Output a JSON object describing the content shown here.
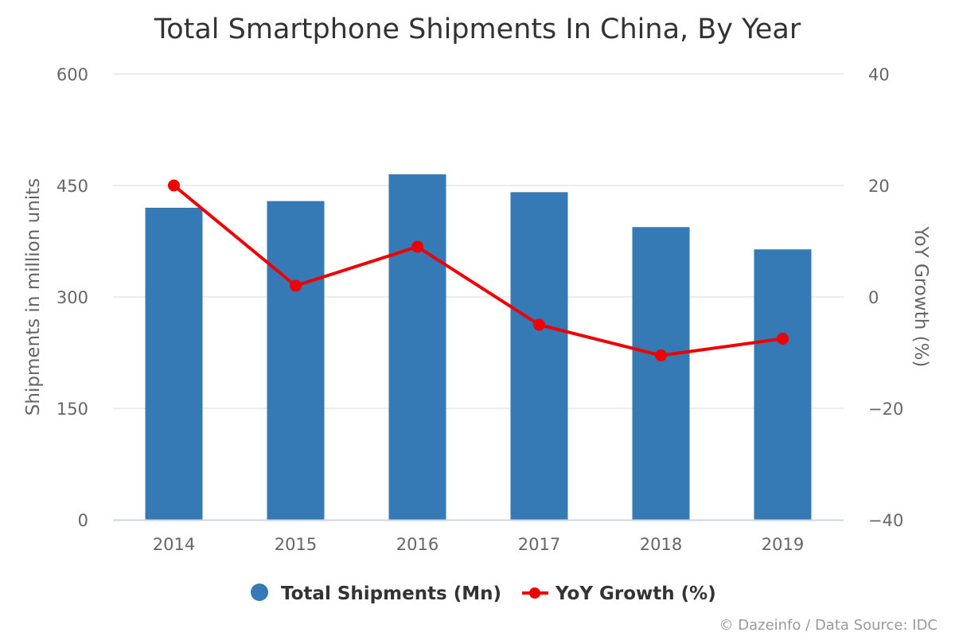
{
  "chart_data": {
    "type": "bar",
    "title": "Total Smartphone Shipments In China, By Year",
    "categories": [
      "2014",
      "2015",
      "2016",
      "2017",
      "2018",
      "2019"
    ],
    "series": [
      {
        "name": "Total Shipments (Mn)",
        "type": "bar",
        "axis": "left",
        "color": "#3579b5",
        "values": [
          420,
          429,
          465,
          441,
          394,
          364
        ]
      },
      {
        "name": "YoY Growth (%)",
        "type": "line",
        "axis": "right",
        "color": "#ee0000",
        "values": [
          20,
          2,
          9,
          -5,
          -10.5,
          -7.5
        ]
      }
    ],
    "y_left": {
      "label": "Shipments in million units",
      "lim": [
        0,
        600
      ],
      "ticks": [
        0,
        150,
        300,
        450,
        600
      ],
      "tick_labels": [
        "0",
        "150",
        "300",
        "450",
        "600"
      ]
    },
    "y_right": {
      "label": "YoY Growth (%)",
      "lim": [
        -40,
        40
      ],
      "ticks": [
        -40,
        -20,
        0,
        20,
        40
      ],
      "tick_labels": [
        "−40",
        "−20",
        "0",
        "20",
        "40"
      ]
    },
    "grid": true,
    "legend": {
      "position": "bottom",
      "items": [
        "Total Shipments (Mn)",
        "YoY Growth (%)"
      ]
    },
    "credit": "© Dazeinfo / Data Source: IDC"
  }
}
